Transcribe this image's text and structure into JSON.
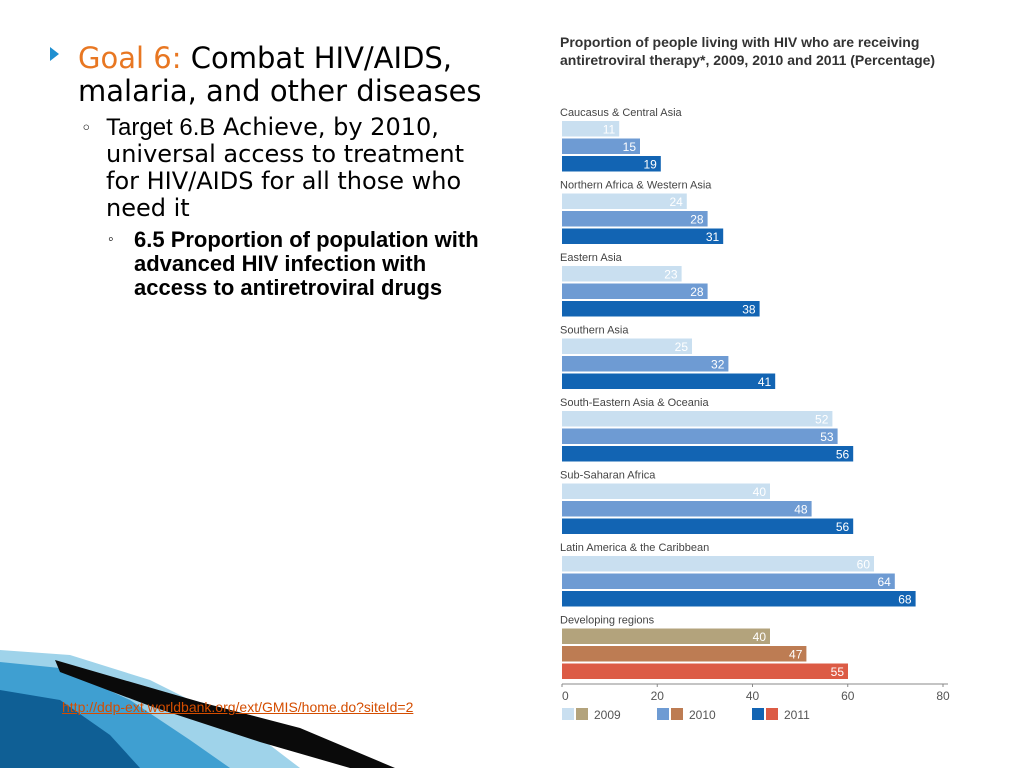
{
  "slide": {
    "goal_label": "Goal 6:",
    "goal_text": "Combat HIV/AIDS, malaria, and other diseases",
    "target_label": "Target 6.B",
    "target_text": "Achieve, by 2010, universal access to treatment for HIV/AIDS for all those who need it",
    "indicator_text": "6.5 Proportion of population with advanced HIV infection with access to antiretroviral drugs",
    "link_text": "http://ddp-ext.worldbank.org/ext/GMIS/home.do?siteId=2",
    "bullet_icons": [
      "triangle-bullet-icon",
      "circle-bullet-icon",
      "circle-bullet-icon"
    ]
  },
  "chart_data": {
    "type": "bar",
    "orientation": "horizontal",
    "title": "Proportion of people living with HIV who are receiving antiretroviral therapy*, 2009, 2010 and 2011 (Percentage)",
    "categories": [
      "Caucasus & Central Asia",
      "Northern Africa & Western Asia",
      "Eastern Asia",
      "Southern Asia",
      "South-Eastern Asia & Oceania",
      "Sub-Saharan Africa",
      "Latin America & the Caribbean",
      "Developing regions"
    ],
    "series": [
      {
        "name": "2009",
        "values": [
          11,
          24,
          23,
          25,
          52,
          40,
          60,
          40
        ]
      },
      {
        "name": "2010",
        "values": [
          15,
          28,
          28,
          32,
          53,
          48,
          64,
          47
        ]
      },
      {
        "name": "2011",
        "values": [
          19,
          31,
          38,
          41,
          56,
          56,
          68,
          55
        ]
      }
    ],
    "colors": {
      "regions": [
        "#c9dff0",
        "#6e9bd3",
        "#1264b3"
      ],
      "developing": [
        "#b3a37c",
        "#bd7c53",
        "#dc5b45"
      ],
      "value_label_dark": "#555555",
      "value_label_light": "#ffffff"
    },
    "x_ticks": [
      "0",
      "20",
      "40",
      "60",
      "80"
    ],
    "xlim": [
      0,
      80
    ],
    "grid": false,
    "legend": {
      "placement": "bottom",
      "labels": [
        "2009",
        "2010",
        "2011"
      ]
    }
  }
}
